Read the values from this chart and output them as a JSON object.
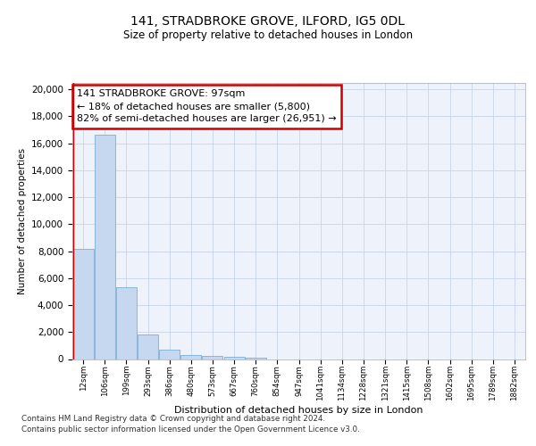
{
  "title_line1": "141, STRADBROKE GROVE, ILFORD, IG5 0DL",
  "title_line2": "Size of property relative to detached houses in London",
  "xlabel": "Distribution of detached houses by size in London",
  "ylabel": "Number of detached properties",
  "categories": [
    "12sqm",
    "106sqm",
    "199sqm",
    "293sqm",
    "386sqm",
    "480sqm",
    "573sqm",
    "667sqm",
    "760sqm",
    "854sqm",
    "947sqm",
    "1041sqm",
    "1134sqm",
    "1228sqm",
    "1321sqm",
    "1415sqm",
    "1508sqm",
    "1602sqm",
    "1695sqm",
    "1789sqm",
    "1882sqm"
  ],
  "values": [
    8200,
    16600,
    5300,
    1850,
    700,
    320,
    200,
    160,
    130,
    0,
    0,
    0,
    0,
    0,
    0,
    0,
    0,
    0,
    0,
    0,
    0
  ],
  "bar_color": "#c5d8f0",
  "bar_edge_color": "#7bafd4",
  "annotation_text": "141 STRADBROKE GROVE: 97sqm\n← 18% of detached houses are smaller (5,800)\n82% of semi-detached houses are larger (26,951) →",
  "annotation_box_color": "#ffffff",
  "annotation_border_color": "#cc0000",
  "ylim": [
    0,
    20500
  ],
  "yticks": [
    0,
    2000,
    4000,
    6000,
    8000,
    10000,
    12000,
    14000,
    16000,
    18000,
    20000
  ],
  "grid_color": "#c8d4e8",
  "background_color": "#eef2fb",
  "footer_line1": "Contains HM Land Registry data © Crown copyright and database right 2024.",
  "footer_line2": "Contains public sector information licensed under the Open Government Licence v3.0.",
  "vertical_line_color": "#cc0000",
  "vertical_line_x": 0.5
}
